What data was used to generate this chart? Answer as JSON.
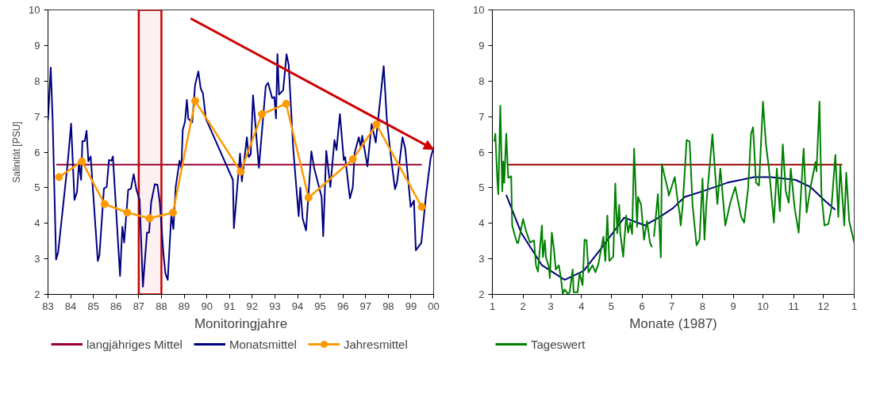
{
  "chart_data": [
    {
      "type": "line",
      "xlabel": "Monitoringjahre",
      "ylabel": "Salinität [PSU]",
      "xlim": [
        "1983",
        "2000"
      ],
      "ylim": [
        2,
        10
      ],
      "xticks": [
        {
          "value": "1983",
          "label": "83"
        },
        {
          "value": "1984",
          "label": "84"
        },
        {
          "value": "1985",
          "label": "85"
        },
        {
          "value": "1986",
          "label": "86"
        },
        {
          "value": "1987",
          "label": "87"
        },
        {
          "value": "1988",
          "label": "88"
        },
        {
          "value": "1989",
          "label": "89"
        },
        {
          "value": "1990",
          "label": "90"
        },
        {
          "value": "1991",
          "label": "91"
        },
        {
          "value": "1992",
          "label": "92"
        },
        {
          "value": "1993",
          "label": "93"
        },
        {
          "value": "1994",
          "label": "94"
        },
        {
          "value": "1995",
          "label": "95"
        },
        {
          "value": "1996",
          "label": "96"
        },
        {
          "value": "1997",
          "label": "97"
        },
        {
          "value": "1998",
          "label": "98"
        },
        {
          "value": "1999",
          "label": "99"
        },
        {
          "value": "2000",
          "label": "00"
        }
      ],
      "yticks": [
        2,
        3,
        4,
        5,
        6,
        7,
        8,
        9,
        10
      ],
      "grid": false,
      "legend": "bottom",
      "line_style": "solid",
      "marker": "none",
      "bands": [
        {
          "axis": "x",
          "from": "1987",
          "to": "1988",
          "color": "#cc0000"
        }
      ],
      "series": [
        {
          "name": "langjähriges Mittel",
          "color": "#99002f",
          "x": [
            "1983-05-14",
            "1999-06-24"
          ],
          "values": [
            5.65,
            5.65
          ]
        },
        {
          "name": "Monatsmittel",
          "color": "#000080",
          "x": [
            "1983-01-01",
            "1983-02-14",
            "1983-03-17",
            "1983-05-11",
            "1983-06-13",
            "1983-11-14",
            "1984-01-08",
            "1984-03-02",
            "1984-04-12",
            "1984-05-14",
            "1984-06-17",
            "1984-07-08",
            "1984-08-14",
            "1984-09-13",
            "1984-10-12",
            "1984-11-18",
            "1985-03-13",
            "1985-04-08",
            "1985-06-20",
            "1985-08-03",
            "1985-09-09",
            "1985-10-19",
            "1985-11-11",
            "1986-03-06",
            "1986-04-12",
            "1986-05-11",
            "1986-07-15",
            "1986-08-29",
            "1986-10-12",
            "1986-11-25",
            "1987-01-15",
            "1987-03-09",
            "1987-05-14",
            "1987-06-17",
            "1987-07-19",
            "1987-09-17",
            "1987-10-30",
            "1987-12-06",
            "1988-02-03",
            "1988-03-06",
            "1988-04-12",
            "1988-06-09",
            "1988-07-12",
            "1988-08-18",
            "1988-10-19",
            "1988-11-18",
            "1988-12-09",
            "1989-01-15",
            "1989-02-14",
            "1989-03-09",
            "1989-05-11",
            "1989-06-27",
            "1989-08-18",
            "1989-09-24",
            "1989-10-30",
            "1989-12-17",
            "1991-02-25",
            "1991-03-13",
            "1991-06-20",
            "1991-07-19",
            "1991-10-08",
            "1991-11-07",
            "1991-12-09",
            "1992-01-15",
            "1992-04-19",
            "1992-08-07",
            "1992-09-13",
            "1992-11-18",
            "1992-12-24",
            "1993-01-19",
            "1993-02-11",
            "1993-03-09",
            "1993-05-14",
            "1993-07-08",
            "1993-08-11",
            "1993-10-23",
            "1994-01-19",
            "1994-02-14",
            "1994-03-24",
            "1994-05-18",
            "1994-08-11",
            "1994-09-27",
            "1995-01-23",
            "1995-02-18",
            "1995-04-08",
            "1995-06-13",
            "1995-08-18",
            "1995-09-20",
            "1995-11-14",
            "1996-01-15",
            "1996-02-07",
            "1996-04-23",
            "1996-06-09",
            "1996-07-08",
            "1996-09-13",
            "1996-10-15",
            "1996-11-07",
            "1997-01-30",
            "1997-04-08",
            "1997-06-13",
            "1997-10-19",
            "1997-12-09",
            "1998-02-21",
            "1998-04-19",
            "1998-05-21",
            "1998-08-18",
            "1998-10-01",
            "1998-12-27",
            "1999-02-18",
            "1999-03-20",
            "1999-06-17",
            "1999-09-02",
            "1999-11-14",
            "2000-01-01"
          ],
          "values": [
            6.9,
            8.38,
            6.9,
            2.98,
            3.18,
            5.7,
            6.8,
            4.66,
            4.88,
            5.72,
            5.22,
            6.31,
            6.31,
            6.6,
            5.74,
            5.88,
            2.94,
            3.1,
            4.98,
            5.02,
            5.78,
            5.76,
            5.88,
            2.52,
            3.9,
            3.46,
            4.94,
            4.98,
            5.38,
            4.94,
            4.66,
            2.22,
            3.74,
            3.74,
            4.58,
            5.1,
            5.08,
            4.58,
            3.14,
            2.58,
            2.41,
            4.26,
            3.84,
            5.02,
            5.76,
            5.54,
            6.62,
            6.86,
            7.47,
            6.94,
            6.84,
            7.9,
            8.27,
            7.79,
            7.66,
            6.94,
            5.22,
            3.86,
            5.96,
            5.18,
            6.42,
            5.86,
            5.94,
            7.6,
            5.56,
            7.86,
            7.95,
            7.52,
            7.55,
            6.95,
            8.76,
            7.62,
            7.74,
            8.75,
            8.46,
            6.1,
            4.2,
            5.0,
            4.14,
            3.8,
            6.02,
            5.54,
            4.74,
            3.64,
            6.04,
            5.02,
            6.34,
            6.06,
            7.07,
            5.78,
            5.86,
            4.7,
            5.02,
            5.98,
            6.42,
            6.14,
            6.46,
            5.6,
            6.79,
            6.27,
            8.42,
            6.9,
            5.74,
            4.96,
            5.14,
            6.42,
            6.1,
            4.46,
            4.64,
            3.24,
            3.45,
            4.82,
            5.84,
            6.14
          ]
        },
        {
          "name": "Jahresmittel",
          "color": "#ff9900",
          "marker": "circle",
          "x": [
            "1983-06-27",
            "1984-07-01",
            "1985-07-01",
            "1986-07-01",
            "1987-06-24",
            "1988-07-05",
            "1989-06-27",
            "1991-07-01",
            "1992-06-06",
            "1993-07-01",
            "1994-06-27",
            "1996-06-09",
            "1997-06-24",
            "1999-06-24"
          ],
          "values": [
            5.3,
            5.74,
            4.54,
            4.3,
            4.14,
            4.3,
            7.44,
            5.45,
            7.07,
            7.36,
            4.72,
            5.8,
            6.78,
            4.46
          ]
        }
      ]
    },
    {
      "type": "line",
      "xlabel": "Monate (1987)",
      "xlim": [
        "1987-01-01",
        "1988-01-01"
      ],
      "ylim": [
        2,
        10
      ],
      "xticks": [
        {
          "value": "1987-01",
          "label": "1"
        },
        {
          "value": "1987-02",
          "label": "2"
        },
        {
          "value": "1987-03",
          "label": "3"
        },
        {
          "value": "1987-04",
          "label": "4"
        },
        {
          "value": "1987-05",
          "label": "5"
        },
        {
          "value": "1987-06",
          "label": "6"
        },
        {
          "value": "1987-07",
          "label": "7"
        },
        {
          "value": "1987-08",
          "label": "8"
        },
        {
          "value": "1987-09",
          "label": "9"
        },
        {
          "value": "1987-10",
          "label": "10"
        },
        {
          "value": "1987-11",
          "label": "11"
        },
        {
          "value": "1987-12",
          "label": "12"
        },
        {
          "value": "1988-01",
          "label": "1"
        }
      ],
      "yticks": [
        2,
        3,
        4,
        5,
        6,
        7,
        8,
        9,
        10
      ],
      "grid": false,
      "legend": "bottom",
      "line_style": "solid",
      "marker": "none",
      "series": [
        {
          "color": "#990000",
          "x": [
            "1987-01-16",
            "1987-12-20"
          ],
          "values": [
            5.65,
            5.65
          ]
        },
        {
          "color": "#000080",
          "x": [
            "1987-01-15",
            "1987-01-30",
            "1987-02-20",
            "1987-03-15",
            "1987-04-03",
            "1987-04-21",
            "1987-05-14",
            "1987-06-04",
            "1987-06-19",
            "1987-07-02",
            "1987-07-14",
            "1987-08-01",
            "1987-08-26",
            "1987-09-22",
            "1987-10-09",
            "1987-11-03",
            "1987-11-18",
            "1987-12-03",
            "1987-12-13"
          ],
          "values": [
            4.8,
            3.74,
            2.82,
            2.41,
            2.66,
            3.3,
            4.16,
            3.94,
            4.18,
            4.42,
            4.74,
            4.9,
            5.14,
            5.3,
            5.3,
            5.22,
            5.02,
            4.62,
            4.38
          ]
        },
        {
          "name": "Tageswert",
          "color": "#008000",
          "x": [
            "1987-01-03",
            "1987-01-04",
            "1987-01-06",
            "1987-01-07",
            "1987-01-09",
            "1987-01-11",
            "1987-01-12",
            "1987-01-13",
            "1987-01-15",
            "1987-01-17",
            "1987-01-20",
            "1987-01-21",
            "1987-01-24",
            "1987-01-26",
            "1987-01-27",
            "1987-01-29",
            "1987-02-01",
            "1987-02-04",
            "1987-02-08",
            "1987-02-12",
            "1987-02-14",
            "1987-02-16",
            "1987-02-20",
            "1987-02-21",
            "1987-02-23",
            "1987-02-24",
            "1987-02-27",
            "1987-02-28",
            "1987-03-02",
            "1987-03-04",
            "1987-03-06",
            "1987-03-09",
            "1987-03-11",
            "1987-03-13",
            "1987-03-15",
            "1987-03-18",
            "1987-03-20",
            "1987-03-23",
            "1987-03-24",
            "1987-03-28",
            "1987-03-30",
            "1987-04-02",
            "1987-04-04",
            "1987-04-06",
            "1987-04-08",
            "1987-04-12",
            "1987-04-15",
            "1987-04-18",
            "1987-04-23",
            "1987-04-25",
            "1987-04-27",
            "1987-04-29",
            "1987-05-03",
            "1987-05-05",
            "1987-05-07",
            "1987-05-09",
            "1987-05-10",
            "1987-05-13",
            "1987-05-16",
            "1987-05-18",
            "1987-05-20",
            "1987-05-22",
            "1987-05-24",
            "1987-05-27",
            "1987-05-28",
            "1987-05-31",
            "1987-06-03",
            "1987-06-06",
            "1987-06-09",
            "1987-06-11",
            "1987-06-12",
            "1987-06-13",
            "1987-06-17",
            "1987-06-20",
            "1987-06-21",
            "1987-06-24",
            "1987-06-27",
            "1987-06-28",
            "1987-07-04",
            "1987-07-07",
            "1987-07-09",
            "1987-07-10",
            "1987-07-12",
            "1987-07-16",
            "1987-07-19",
            "1987-07-22",
            "1987-07-26",
            "1987-07-29",
            "1987-08-01",
            "1987-08-03",
            "1987-08-05",
            "1987-08-11",
            "1987-08-16",
            "1987-08-19",
            "1987-08-24",
            "1987-08-29",
            "1987-09-03",
            "1987-09-09",
            "1987-09-12",
            "1987-09-16",
            "1987-09-19",
            "1987-09-21",
            "1987-09-24",
            "1987-09-27",
            "1987-10-01",
            "1987-10-04",
            "1987-10-07",
            "1987-10-12",
            "1987-10-15",
            "1987-10-18",
            "1987-10-21",
            "1987-10-24",
            "1987-10-27",
            "1987-10-29",
            "1987-11-02",
            "1987-11-06",
            "1987-11-11",
            "1987-11-14",
            "1987-11-18",
            "1987-11-23",
            "1987-11-24",
            "1987-11-27",
            "1987-11-29",
            "1987-12-02",
            "1987-12-06",
            "1987-12-09",
            "1987-12-13",
            "1987-12-16",
            "1987-12-18",
            "1987-12-22",
            "1987-12-24",
            "1987-12-27",
            "1988-01-01"
          ],
          "values": [
            6.3,
            6.52,
            5.22,
            4.82,
            7.31,
            4.9,
            5.74,
            5.14,
            6.52,
            5.28,
            5.32,
            3.94,
            3.62,
            3.45,
            3.45,
            3.7,
            4.12,
            3.78,
            3.46,
            3.52,
            2.82,
            2.64,
            3.94,
            3.05,
            3.52,
            3.05,
            2.78,
            2.46,
            3.74,
            3.3,
            2.7,
            2.82,
            2.5,
            2.02,
            2.14,
            2.02,
            2.06,
            2.7,
            2.06,
            2.06,
            2.6,
            2.26,
            3.54,
            3.52,
            2.62,
            2.82,
            2.62,
            2.86,
            3.62,
            2.94,
            4.22,
            2.94,
            3.06,
            5.12,
            3.72,
            4.52,
            3.74,
            3.06,
            4.22,
            3.74,
            4.02,
            3.7,
            6.1,
            3.9,
            4.74,
            4.52,
            3.54,
            4.06,
            3.46,
            3.33,
            null,
            3.62,
            4.82,
            3.04,
            5.66,
            5.3,
            4.96,
            4.78,
            5.3,
            4.62,
            4.26,
            3.94,
            4.5,
            6.34,
            6.3,
            4.5,
            3.38,
            3.54,
            5.26,
            3.54,
            4.58,
            6.5,
            4.54,
            5.54,
            3.94,
            4.58,
            5.02,
            4.18,
            4.02,
            4.98,
            6.52,
            6.7,
            5.14,
            5.06,
            7.42,
            6.22,
            5.54,
            4.02,
            5.54,
            4.34,
            6.22,
            4.9,
            4.58,
            5.54,
            4.42,
            3.74,
            6.1,
            4.3,
            5.02,
            5.72,
            5.46,
            7.42,
            4.82,
            3.94,
            3.98,
            4.42,
            5.92,
            4.18,
            5.62,
            3.94,
            5.42,
            4.06,
            3.46
          ]
        }
      ]
    }
  ]
}
